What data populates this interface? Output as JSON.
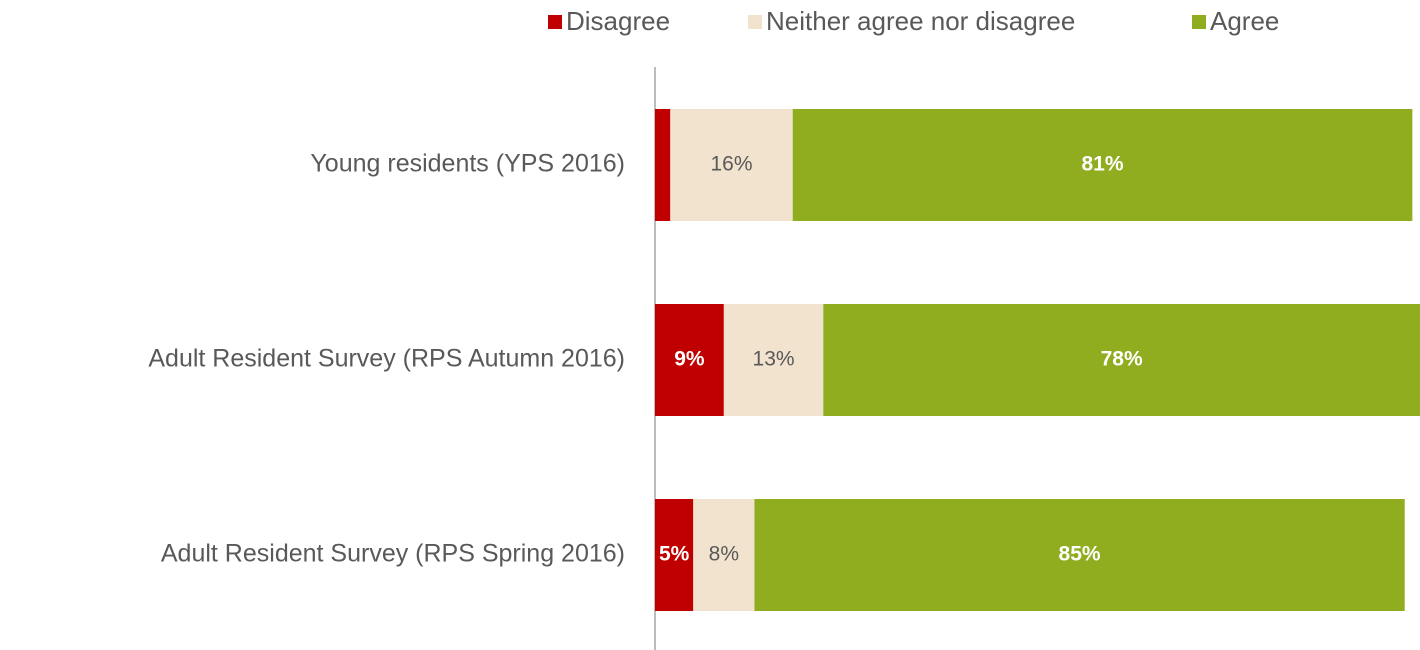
{
  "chart_data": {
    "type": "stacked_barh",
    "categories": [
      "Young residents (YPS 2016)",
      "Adult Resident Survey (RPS Autumn 2016)",
      "Adult Resident Survey (RPS Spring 2016)"
    ],
    "series": [
      {
        "name": "Disagree",
        "color": "#c00000",
        "values": [
          2,
          9,
          5
        ],
        "value_labels": [
          null,
          "9%",
          "5%"
        ]
      },
      {
        "name": "Neither agree nor disagree",
        "color": "#f2e3cf",
        "values": [
          16,
          13,
          8
        ],
        "value_labels": [
          "16%",
          "13%",
          "8%"
        ]
      },
      {
        "name": "Agree",
        "color": "#8fad1f",
        "values": [
          81,
          78,
          85
        ],
        "value_labels": [
          "81%",
          "78%",
          "85%"
        ]
      }
    ],
    "xlim": [
      0,
      100
    ],
    "legend": "top"
  }
}
